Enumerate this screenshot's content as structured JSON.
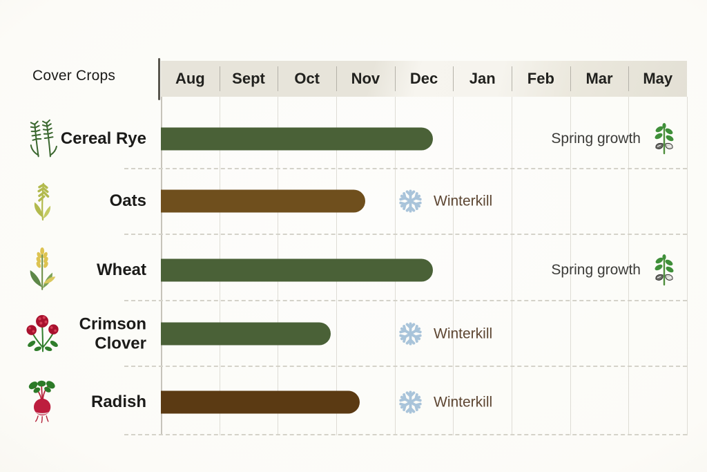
{
  "chart_data": {
    "type": "gantt",
    "title": "Cover Crops",
    "x_axis": {
      "unit": "month",
      "ticks": [
        "Aug",
        "Sept",
        "Oct",
        "Nov",
        "Dec",
        "Jan",
        "Feb",
        "Mar",
        "May"
      ]
    },
    "rows": [
      {
        "label": "Cereal Rye",
        "icon": "cereal-rye-icon",
        "bar": {
          "start": 0,
          "end": 4.65,
          "start_month": "Aug",
          "end_month": "mid-Dec",
          "color": "#4a6137"
        },
        "annotation": {
          "type": "spring-growth",
          "label": "Spring growth",
          "icon": "seedling-icon"
        }
      },
      {
        "label": "Oats",
        "icon": "oat-icon",
        "bar": {
          "start": 0,
          "end": 3.5,
          "start_month": "Aug",
          "end_month": "mid-Nov",
          "color": "#6f4f1d"
        },
        "annotation": {
          "type": "winterkill",
          "label": "Winterkill",
          "icon": "snowflake-icon"
        }
      },
      {
        "label": "Wheat",
        "icon": "wheat-icon",
        "bar": {
          "start": 0,
          "end": 4.65,
          "start_month": "Aug",
          "end_month": "mid-Dec",
          "color": "#4a6137"
        },
        "annotation": {
          "type": "spring-growth",
          "label": "Spring growth",
          "icon": "seedling-icon"
        }
      },
      {
        "label": "Crimson Clover",
        "icon": "crimson-clover-icon",
        "bar": {
          "start": 0,
          "end": 2.9,
          "start_month": "Aug",
          "end_month": "late Oct",
          "color": "#4a6137"
        },
        "annotation": {
          "type": "winterkill",
          "label": "Winterkill",
          "icon": "snowflake-icon"
        }
      },
      {
        "label": "Radish",
        "icon": "radish-icon",
        "bar": {
          "start": 0,
          "end": 3.4,
          "start_month": "Aug",
          "end_month": "mid-Nov",
          "color": "#5b3a13"
        },
        "annotation": {
          "type": "winterkill",
          "label": "Winterkill",
          "icon": "snowflake-icon"
        }
      }
    ],
    "colors": {
      "green_bar": "#4a6137",
      "oats_bar": "#6f4f1d",
      "radish_bar": "#5b3a13",
      "snowflake": "#a9c4da",
      "winterkill_text": "#5d4632",
      "spring_growth_text": "#3b3b38",
      "header_strip": "#e7e4da"
    },
    "legend": null,
    "grid": "vertical month gridlines, dashed row separators"
  }
}
